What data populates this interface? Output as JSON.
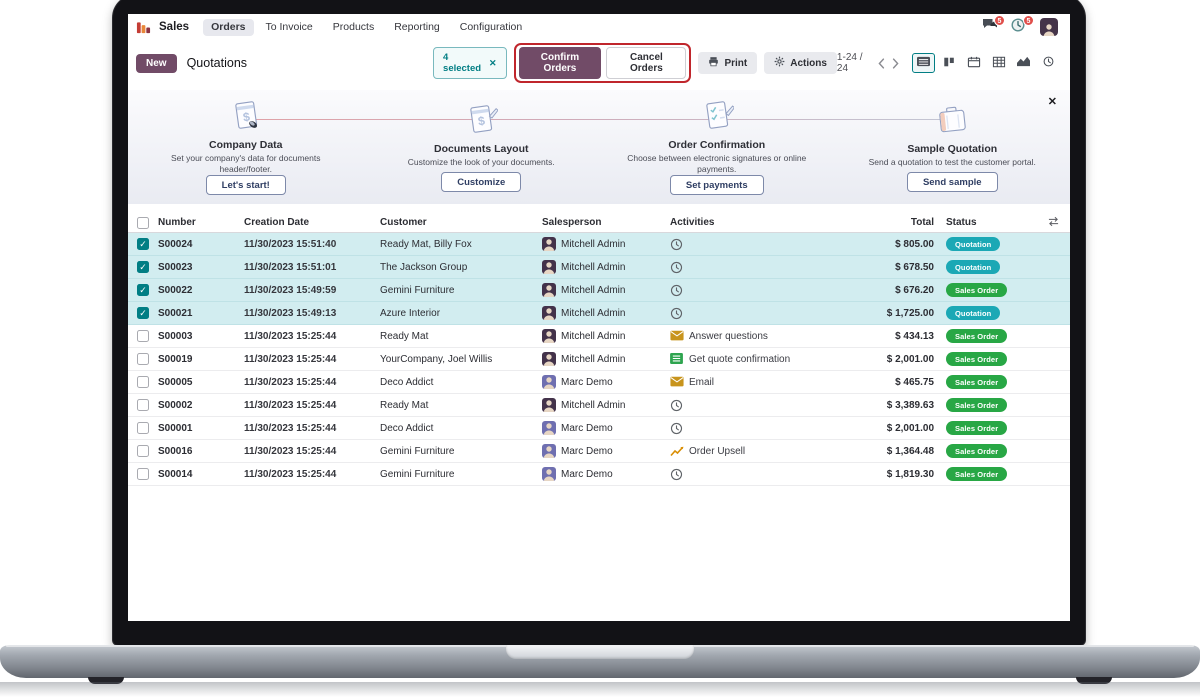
{
  "colors": {
    "primary": "#714B67",
    "accent": "#017e84",
    "selected_row": "#d2edf0",
    "quotation_badge": "#1ba8b5",
    "sales_order_badge": "#28a745",
    "highlight_red": "#c0262c",
    "badge_red": "#e04f4b"
  },
  "nav": {
    "app_name": "Sales",
    "items": [
      {
        "label": "Orders",
        "active": true
      },
      {
        "label": "To Invoice",
        "active": false
      },
      {
        "label": "Products",
        "active": false
      },
      {
        "label": "Reporting",
        "active": false
      },
      {
        "label": "Configuration",
        "active": false
      }
    ],
    "messages_badge": "5",
    "activities_badge": "5"
  },
  "control_panel": {
    "new_button": "New",
    "breadcrumb": "Quotations",
    "selected_badge": "4 selected",
    "confirm_button": "Confirm Orders",
    "cancel_button": "Cancel Orders",
    "print_button": "Print",
    "actions_button": "Actions",
    "pager": "1-24 / 24",
    "views": [
      {
        "name": "list",
        "active": true
      },
      {
        "name": "kanban",
        "active": false
      },
      {
        "name": "calendar",
        "active": false
      },
      {
        "name": "pivot",
        "active": false
      },
      {
        "name": "graph",
        "active": false
      },
      {
        "name": "activity",
        "active": false
      }
    ]
  },
  "onboarding": {
    "steps": [
      {
        "title": "Company Data",
        "description": "Set your company's data for documents header/footer.",
        "button": "Let's start!",
        "icon": "doc_dollar"
      },
      {
        "title": "Documents Layout",
        "description": "Customize the look of your documents.",
        "button": "Customize",
        "icon": "doc_pencil"
      },
      {
        "title": "Order Confirmation",
        "description": "Choose between electronic signatures or online payments.",
        "button": "Set payments",
        "icon": "clipboard_check"
      },
      {
        "title": "Sample Quotation",
        "description": "Send a quotation to test the customer portal.",
        "button": "Send sample",
        "icon": "briefcase"
      }
    ]
  },
  "table": {
    "headers": {
      "number": "Number",
      "creation_date": "Creation Date",
      "customer": "Customer",
      "salesperson": "Salesperson",
      "activities": "Activities",
      "total": "Total",
      "status": "Status"
    },
    "rows": [
      {
        "number": "S00024",
        "creation_date": "11/30/2023 15:51:40",
        "customer": "Ready Mat, Billy Fox",
        "salesperson": "Mitchell Admin",
        "avatar": "mitchell",
        "activity": {
          "icon": "clock",
          "label": ""
        },
        "total": "$ 805.00",
        "status": "Quotation",
        "status_type": "quotation",
        "selected": true
      },
      {
        "number": "S00023",
        "creation_date": "11/30/2023 15:51:01",
        "customer": "The Jackson Group",
        "salesperson": "Mitchell Admin",
        "avatar": "mitchell",
        "activity": {
          "icon": "clock",
          "label": ""
        },
        "total": "$ 678.50",
        "status": "Quotation",
        "status_type": "quotation",
        "selected": true
      },
      {
        "number": "S00022",
        "creation_date": "11/30/2023 15:49:59",
        "customer": "Gemini Furniture",
        "salesperson": "Mitchell Admin",
        "avatar": "mitchell",
        "activity": {
          "icon": "clock",
          "label": ""
        },
        "total": "$ 676.20",
        "status": "Sales Order",
        "status_type": "sale",
        "selected": true
      },
      {
        "number": "S00021",
        "creation_date": "11/30/2023 15:49:13",
        "customer": "Azure Interior",
        "salesperson": "Mitchell Admin",
        "avatar": "mitchell",
        "activity": {
          "icon": "clock",
          "label": ""
        },
        "total": "$ 1,725.00",
        "status": "Quotation",
        "status_type": "quotation",
        "selected": true
      },
      {
        "number": "S00003",
        "creation_date": "11/30/2023 15:25:44",
        "customer": "Ready Mat",
        "salesperson": "Mitchell Admin",
        "avatar": "mitchell",
        "activity": {
          "icon": "envelope",
          "label": "Answer questions"
        },
        "total": "$ 434.13",
        "status": "Sales Order",
        "status_type": "sale",
        "selected": false
      },
      {
        "number": "S00019",
        "creation_date": "11/30/2023 15:25:44",
        "customer": "YourCompany, Joel Willis",
        "salesperson": "Mitchell Admin",
        "avatar": "mitchell",
        "activity": {
          "icon": "list",
          "label": "Get quote confirmation"
        },
        "total": "$ 2,001.00",
        "status": "Sales Order",
        "status_type": "sale",
        "selected": false
      },
      {
        "number": "S00005",
        "creation_date": "11/30/2023 15:25:44",
        "customer": "Deco Addict",
        "salesperson": "Marc Demo",
        "avatar": "marc",
        "activity": {
          "icon": "envelope",
          "label": "Email"
        },
        "total": "$ 465.75",
        "status": "Sales Order",
        "status_type": "sale",
        "selected": false
      },
      {
        "number": "S00002",
        "creation_date": "11/30/2023 15:25:44",
        "customer": "Ready Mat",
        "salesperson": "Mitchell Admin",
        "avatar": "mitchell",
        "activity": {
          "icon": "clock",
          "label": ""
        },
        "total": "$ 3,389.63",
        "status": "Sales Order",
        "status_type": "sale",
        "selected": false
      },
      {
        "number": "S00001",
        "creation_date": "11/30/2023 15:25:44",
        "customer": "Deco Addict",
        "salesperson": "Marc Demo",
        "avatar": "marc",
        "activity": {
          "icon": "clock",
          "label": ""
        },
        "total": "$ 2,001.00",
        "status": "Sales Order",
        "status_type": "sale",
        "selected": false
      },
      {
        "number": "S00016",
        "creation_date": "11/30/2023 15:25:44",
        "customer": "Gemini Furniture",
        "salesperson": "Marc Demo",
        "avatar": "marc",
        "activity": {
          "icon": "chart",
          "label": "Order Upsell"
        },
        "total": "$ 1,364.48",
        "status": "Sales Order",
        "status_type": "sale",
        "selected": false
      },
      {
        "number": "S00014",
        "creation_date": "11/30/2023 15:25:44",
        "customer": "Gemini Furniture",
        "salesperson": "Marc Demo",
        "avatar": "marc",
        "activity": {
          "icon": "clock",
          "label": ""
        },
        "total": "$ 1,819.30",
        "status": "Sales Order",
        "status_type": "sale",
        "selected": false
      }
    ]
  }
}
